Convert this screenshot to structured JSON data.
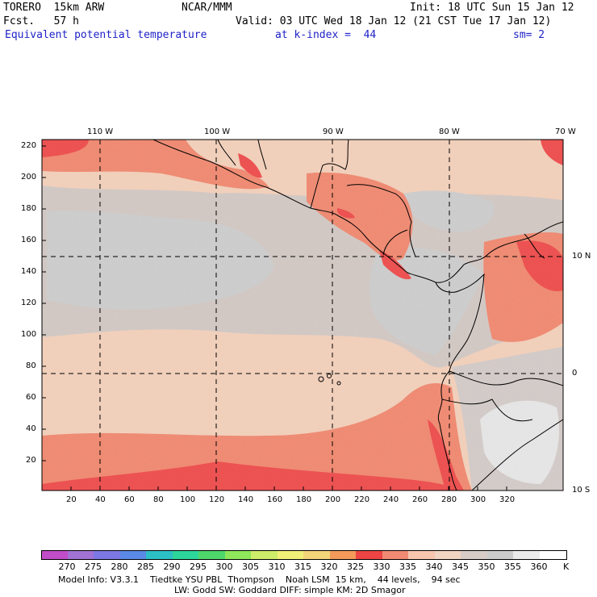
{
  "header": {
    "model": "TORERO  15km ARW",
    "org": "NCAR/MMM",
    "init": "Init: 18 UTC Sun 15 Jan 12",
    "fcst": "Fcst.   57 h",
    "valid": "Valid: 03 UTC Wed 18 Jan 12 (21 CST Tue 17 Jan 12)",
    "field": "Equivalent potential temperature",
    "level": "at k-index =  44",
    "smooth": "sm= 2"
  },
  "map": {
    "lon_labels": [
      "110 W",
      "100 W",
      "90 W",
      "80 W",
      "70 W"
    ],
    "lat_labels": [
      "10 N",
      "0",
      "10 S"
    ],
    "y_ticks": [
      "220",
      "200",
      "180",
      "160",
      "140",
      "120",
      "100",
      "80",
      "60",
      "40",
      "20"
    ],
    "x_ticks": [
      "20",
      "40",
      "60",
      "80",
      "100",
      "120",
      "140",
      "160",
      "180",
      "200",
      "220",
      "240",
      "260",
      "280",
      "300",
      "320"
    ]
  },
  "colorbar": {
    "unit": "K",
    "labels": [
      "270",
      "275",
      "280",
      "285",
      "290",
      "295",
      "300",
      "305",
      "310",
      "315",
      "320",
      "325",
      "330",
      "335",
      "340",
      "345",
      "350",
      "355",
      "360"
    ],
    "colors": [
      "#c24dc8",
      "#a272d4",
      "#7b78e4",
      "#5a8ae6",
      "#2cc0c4",
      "#2dd69a",
      "#4ed86c",
      "#8ee65a",
      "#cdec6a",
      "#f2ef78",
      "#f4d478",
      "#f49a5a",
      "#ee4444",
      "#f08a72",
      "#f6c6ae",
      "#f2d4c2",
      "#d8ccc8",
      "#cccccc",
      "#ebebeb",
      "#ffffff"
    ]
  },
  "footer": {
    "line1": "Model Info: V3.3.1    Tiedtke YSU PBL  Thompson    Noah LSM  15 km,    44 levels,    94 sec",
    "line2": "LW: Godd SW: Goddard DIFF: simple KM: 2D Smagor"
  }
}
